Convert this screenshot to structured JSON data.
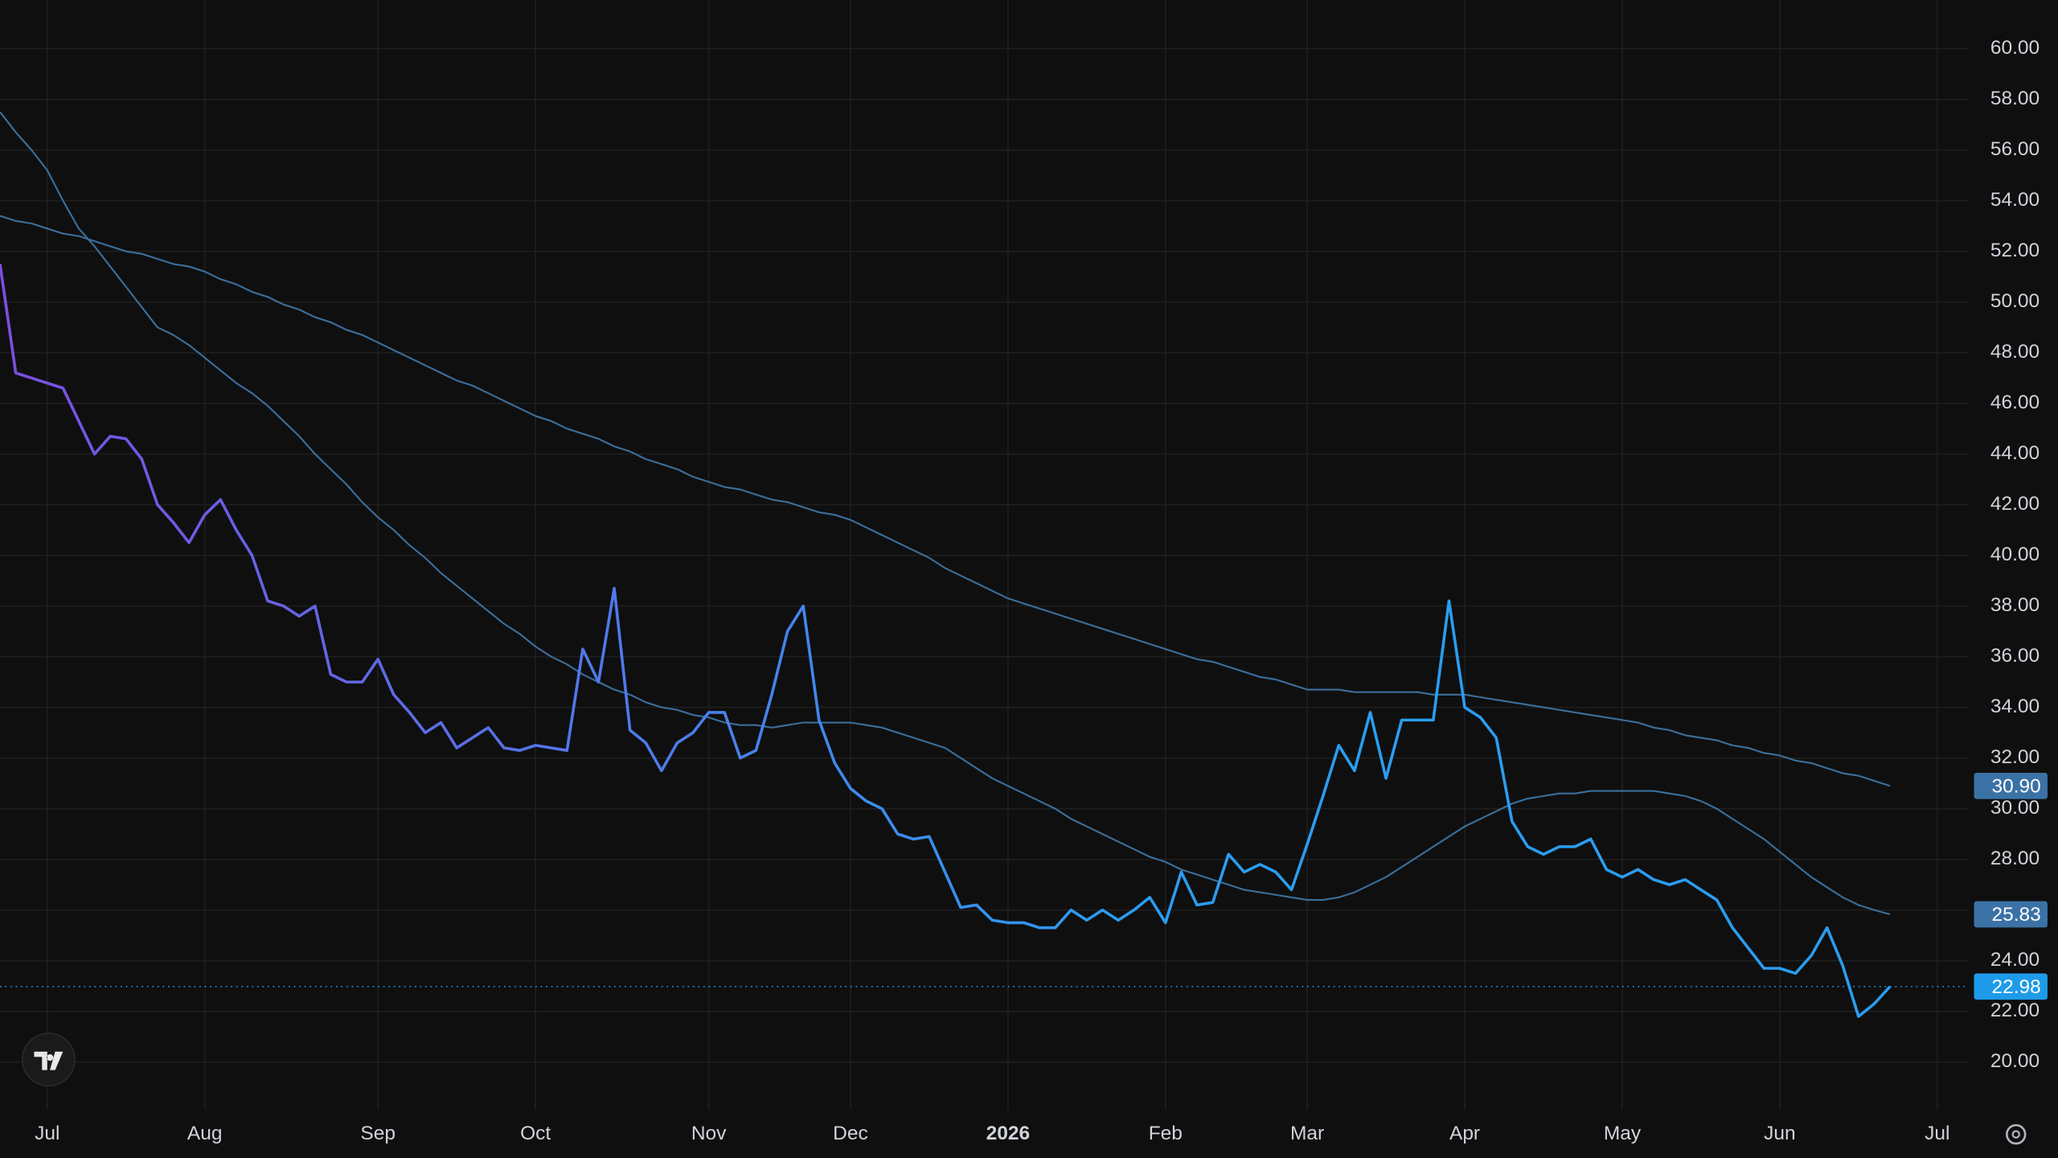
{
  "chart_data": {
    "type": "line",
    "categories": [
      null,
      null,
      null,
      "Jul",
      null,
      null,
      null,
      null,
      null,
      null,
      null,
      null,
      null,
      "Aug",
      null,
      null,
      null,
      null,
      null,
      null,
      null,
      null,
      null,
      null,
      "Sep",
      null,
      null,
      null,
      null,
      null,
      null,
      null,
      null,
      null,
      "Oct",
      null,
      null,
      null,
      null,
      null,
      null,
      null,
      null,
      null,
      null,
      "Nov",
      null,
      null,
      null,
      null,
      null,
      null,
      null,
      null,
      "Dec",
      null,
      null,
      null,
      null,
      null,
      null,
      null,
      null,
      null,
      "2026",
      null,
      null,
      null,
      null,
      null,
      null,
      null,
      null,
      null,
      "Feb",
      null,
      null,
      null,
      null,
      null,
      null,
      null,
      null,
      "Mar",
      null,
      null,
      null,
      null,
      null,
      null,
      null,
      null,
      null,
      "Apr",
      null,
      null,
      null,
      null,
      null,
      null,
      null,
      null,
      null,
      "May",
      null,
      null,
      null,
      null,
      null,
      null,
      null,
      null,
      null,
      "Jun",
      null,
      null,
      null,
      null,
      null,
      null,
      null,
      null,
      null,
      "Jul"
    ],
    "series": [
      {
        "color": "#2a9df0",
        "gradient_start": "#7b4fe2",
        "values": [
          51.5,
          47.2,
          47.0,
          46.8,
          46.6,
          45.3,
          44.0,
          44.7,
          44.6,
          43.8,
          42.0,
          41.3,
          40.5,
          41.6,
          42.2,
          41.0,
          40.0,
          38.2,
          38.0,
          37.6,
          38.0,
          35.3,
          35.0,
          35.0,
          35.9,
          34.5,
          33.8,
          33.0,
          33.4,
          32.4,
          32.8,
          33.2,
          32.4,
          32.3,
          32.5,
          32.4,
          32.3,
          36.3,
          35.0,
          38.7,
          33.1,
          32.6,
          31.5,
          32.6,
          33.0,
          33.8,
          33.8,
          32.0,
          32.3,
          34.5,
          37.0,
          38.0,
          33.5,
          31.8,
          30.8,
          30.3,
          30.0,
          29.0,
          28.8,
          28.9,
          27.5,
          26.1,
          26.2,
          25.6,
          25.5,
          25.5,
          25.3,
          25.3,
          26.0,
          25.6,
          26.0,
          25.6,
          26.0,
          26.5,
          25.5,
          27.5,
          26.2,
          26.3,
          28.2,
          27.5,
          27.8,
          27.5,
          26.8,
          28.6,
          30.5,
          32.5,
          31.5,
          33.8,
          31.2,
          33.5,
          33.5,
          33.5,
          38.2,
          34.0,
          33.6,
          32.8,
          29.5,
          28.5,
          28.2,
          28.5,
          28.5,
          28.8,
          27.6,
          27.3,
          27.6,
          27.2,
          27.0,
          27.2,
          26.8,
          26.4,
          25.3,
          24.5,
          23.7,
          23.7,
          23.5,
          24.2,
          25.3,
          23.8,
          21.8,
          22.3,
          22.98,
          null,
          null,
          null
        ],
        "value_labels": [
          null,
          null,
          null,
          null,
          null,
          null,
          null,
          null,
          null,
          null,
          null,
          null,
          null,
          null,
          null,
          null,
          null,
          null,
          null,
          null,
          null,
          null,
          null,
          null,
          null,
          null,
          null,
          null,
          null,
          null,
          null,
          null,
          null,
          null,
          null,
          null,
          null,
          null,
          null,
          null,
          null,
          null,
          null,
          null,
          null,
          null,
          null,
          null,
          null,
          null,
          null,
          null,
          null,
          null,
          null,
          null,
          null,
          null,
          null,
          null,
          null,
          null,
          null,
          null,
          null,
          null,
          null,
          null,
          null,
          null,
          null,
          null,
          null,
          null,
          null,
          null,
          null,
          null,
          null,
          null,
          null,
          null,
          null,
          null,
          null,
          null,
          null,
          null,
          null,
          null,
          null,
          null,
          null,
          null,
          null,
          null,
          null,
          null,
          null,
          null,
          null,
          null,
          null,
          null,
          null,
          null,
          null,
          null,
          null,
          null,
          null,
          null,
          null,
          null,
          null,
          null,
          null,
          null,
          null,
          null,
          "22.98",
          null,
          null,
          null
        ],
        "badge_color": "#1e9be8"
      },
      {
        "color": "#3a6f9c",
        "values": [
          53.4,
          53.2,
          53.1,
          52.9,
          52.7,
          52.6,
          52.4,
          52.2,
          52.0,
          51.9,
          51.7,
          51.5,
          51.4,
          51.2,
          50.9,
          50.7,
          50.4,
          50.2,
          49.9,
          49.7,
          49.4,
          49.2,
          48.9,
          48.7,
          48.4,
          48.1,
          47.8,
          47.5,
          47.2,
          46.9,
          46.7,
          46.4,
          46.1,
          45.8,
          45.5,
          45.3,
          45.0,
          44.8,
          44.6,
          44.3,
          44.1,
          43.8,
          43.6,
          43.4,
          43.1,
          42.9,
          42.7,
          42.6,
          42.4,
          42.2,
          42.1,
          41.9,
          41.7,
          41.6,
          41.4,
          41.1,
          40.8,
          40.5,
          40.2,
          39.9,
          39.5,
          39.2,
          38.9,
          38.6,
          38.3,
          38.1,
          37.9,
          37.7,
          37.5,
          37.3,
          37.1,
          36.9,
          36.7,
          36.5,
          36.3,
          36.1,
          35.9,
          35.8,
          35.6,
          35.4,
          35.2,
          35.1,
          34.9,
          34.7,
          34.7,
          34.7,
          34.6,
          34.6,
          34.6,
          34.6,
          34.6,
          34.5,
          34.5,
          34.5,
          34.4,
          34.3,
          34.2,
          34.1,
          34.0,
          33.9,
          33.8,
          33.7,
          33.6,
          33.5,
          33.4,
          33.2,
          33.1,
          32.9,
          32.8,
          32.7,
          32.5,
          32.4,
          32.2,
          32.1,
          31.9,
          31.8,
          31.6,
          31.4,
          31.3,
          31.1,
          30.9,
          null,
          null,
          null
        ],
        "value_labels": [
          null,
          null,
          null,
          null,
          null,
          null,
          null,
          null,
          null,
          null,
          null,
          null,
          null,
          null,
          null,
          null,
          null,
          null,
          null,
          null,
          null,
          null,
          null,
          null,
          null,
          null,
          null,
          null,
          null,
          null,
          null,
          null,
          null,
          null,
          null,
          null,
          null,
          null,
          null,
          null,
          null,
          null,
          null,
          null,
          null,
          null,
          null,
          null,
          null,
          null,
          null,
          null,
          null,
          null,
          null,
          null,
          null,
          null,
          null,
          null,
          null,
          null,
          null,
          null,
          null,
          null,
          null,
          null,
          null,
          null,
          null,
          null,
          null,
          null,
          null,
          null,
          null,
          null,
          null,
          null,
          null,
          null,
          null,
          null,
          null,
          null,
          null,
          null,
          null,
          null,
          null,
          null,
          null,
          null,
          null,
          null,
          null,
          null,
          null,
          null,
          null,
          null,
          null,
          null,
          null,
          null,
          null,
          null,
          null,
          null,
          null,
          null,
          null,
          null,
          null,
          null,
          null,
          null,
          null,
          null,
          "30.90",
          null,
          null,
          null
        ],
        "badge_color": "#3b72a5"
      },
      {
        "color": "#3a6f9c",
        "values": [
          57.5,
          56.7,
          56.0,
          55.2,
          54.0,
          52.9,
          52.2,
          51.4,
          50.6,
          49.8,
          49.0,
          48.7,
          48.3,
          47.8,
          47.3,
          46.8,
          46.4,
          45.9,
          45.3,
          44.7,
          44.0,
          43.4,
          42.8,
          42.1,
          41.5,
          41.0,
          40.4,
          39.9,
          39.3,
          38.8,
          38.3,
          37.8,
          37.3,
          36.9,
          36.4,
          36.0,
          35.7,
          35.3,
          35.0,
          34.7,
          34.5,
          34.2,
          34.0,
          33.9,
          33.7,
          33.6,
          33.4,
          33.3,
          33.3,
          33.2,
          33.3,
          33.4,
          33.4,
          33.4,
          33.4,
          33.3,
          33.2,
          33.0,
          32.8,
          32.6,
          32.4,
          32.0,
          31.6,
          31.2,
          30.9,
          30.6,
          30.3,
          30.0,
          29.6,
          29.3,
          29.0,
          28.7,
          28.4,
          28.1,
          27.9,
          27.6,
          27.4,
          27.2,
          27.0,
          26.8,
          26.7,
          26.6,
          26.5,
          26.4,
          26.4,
          26.5,
          26.7,
          27.0,
          27.3,
          27.7,
          28.1,
          28.5,
          28.9,
          29.3,
          29.6,
          29.9,
          30.2,
          30.4,
          30.5,
          30.6,
          30.6,
          30.7,
          30.7,
          30.7,
          30.7,
          30.7,
          30.6,
          30.5,
          30.3,
          30.0,
          29.6,
          29.2,
          28.8,
          28.3,
          27.8,
          27.3,
          26.9,
          26.5,
          26.2,
          26.0,
          25.83,
          null,
          null,
          null
        ],
        "value_labels": [
          null,
          null,
          null,
          null,
          null,
          null,
          null,
          null,
          null,
          null,
          null,
          null,
          null,
          null,
          null,
          null,
          null,
          null,
          null,
          null,
          null,
          null,
          null,
          null,
          null,
          null,
          null,
          null,
          null,
          null,
          null,
          null,
          null,
          null,
          null,
          null,
          null,
          null,
          null,
          null,
          null,
          null,
          null,
          null,
          null,
          null,
          null,
          null,
          null,
          null,
          null,
          null,
          null,
          null,
          null,
          null,
          null,
          null,
          null,
          null,
          null,
          null,
          null,
          null,
          null,
          null,
          null,
          null,
          null,
          null,
          null,
          null,
          null,
          null,
          null,
          null,
          null,
          null,
          null,
          null,
          null,
          null,
          null,
          null,
          null,
          null,
          null,
          null,
          null,
          null,
          null,
          null,
          null,
          null,
          null,
          null,
          null,
          null,
          null,
          null,
          null,
          null,
          null,
          null,
          null,
          null,
          null,
          null,
          null,
          null,
          null,
          null,
          null,
          null,
          null,
          null,
          null,
          null,
          null,
          null,
          "25.83",
          null,
          null,
          null
        ],
        "badge_color": "#3b72a5"
      }
    ],
    "ylim": [
      18.13,
      61.92
    ],
    "yticks": [
      {
        "value": 20,
        "label": "20.00"
      },
      {
        "value": 22,
        "label": "22.00"
      },
      {
        "value": 24,
        "label": "24.00"
      },
      {
        "value": 26,
        "label": "26.00"
      },
      {
        "value": 28,
        "label": "28.00"
      },
      {
        "value": 30,
        "label": "30.00"
      },
      {
        "value": 32,
        "label": "32.00"
      },
      {
        "value": 34,
        "label": "34.00"
      },
      {
        "value": 36,
        "label": "36.00"
      },
      {
        "value": 38,
        "label": "38.00"
      },
      {
        "value": 40,
        "label": "40.00"
      },
      {
        "value": 42,
        "label": "42.00"
      },
      {
        "value": 44,
        "label": "44.00"
      },
      {
        "value": 46,
        "label": "46.00"
      },
      {
        "value": 48,
        "label": "48.00"
      },
      {
        "value": 50,
        "label": "50.00"
      },
      {
        "value": 52,
        "label": "52.00"
      },
      {
        "value": 54,
        "label": "54.00"
      },
      {
        "value": 56,
        "label": "56.00"
      },
      {
        "value": 58,
        "label": "58.00"
      },
      {
        "value": 60,
        "label": "60.00"
      }
    ],
    "grid": true,
    "bold_category": "2026"
  }
}
